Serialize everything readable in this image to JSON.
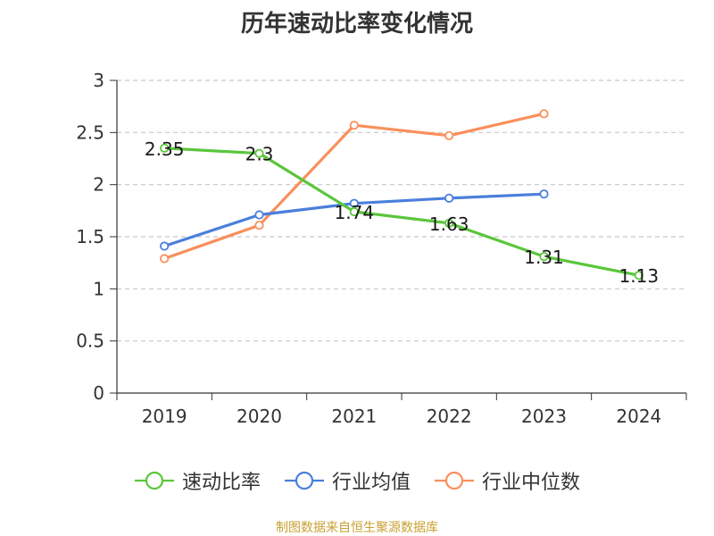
{
  "title": "历年速动比率变化情况",
  "source_note": "制图数据来自恒生聚源数据库",
  "chart_data": {
    "type": "line",
    "title": "历年速动比率变化情况",
    "xlabel": "",
    "ylabel": "",
    "ylim": [
      0,
      3
    ],
    "yticks": [
      "0",
      "0.5",
      "1",
      "1.5",
      "2",
      "2.5",
      "3"
    ],
    "grid": true,
    "legend_position": "bottom",
    "categories": [
      "2019",
      "2020",
      "2021",
      "2022",
      "2023",
      "2024"
    ],
    "series": [
      {
        "name": "速动比率",
        "color": "#5ac63b",
        "values": [
          2.35,
          2.3,
          1.74,
          1.63,
          1.31,
          1.13
        ],
        "labels": [
          "2.35",
          "2.3",
          "1.74",
          "1.63",
          "1.31",
          "1.13"
        ]
      },
      {
        "name": "行业均值",
        "color": "#4a7fdc",
        "values": [
          1.41,
          1.71,
          1.82,
          1.87,
          1.91,
          null
        ]
      },
      {
        "name": "行业中位数",
        "color": "#f98f5c",
        "values": [
          1.29,
          1.61,
          2.57,
          2.47,
          2.68,
          null
        ]
      }
    ]
  }
}
